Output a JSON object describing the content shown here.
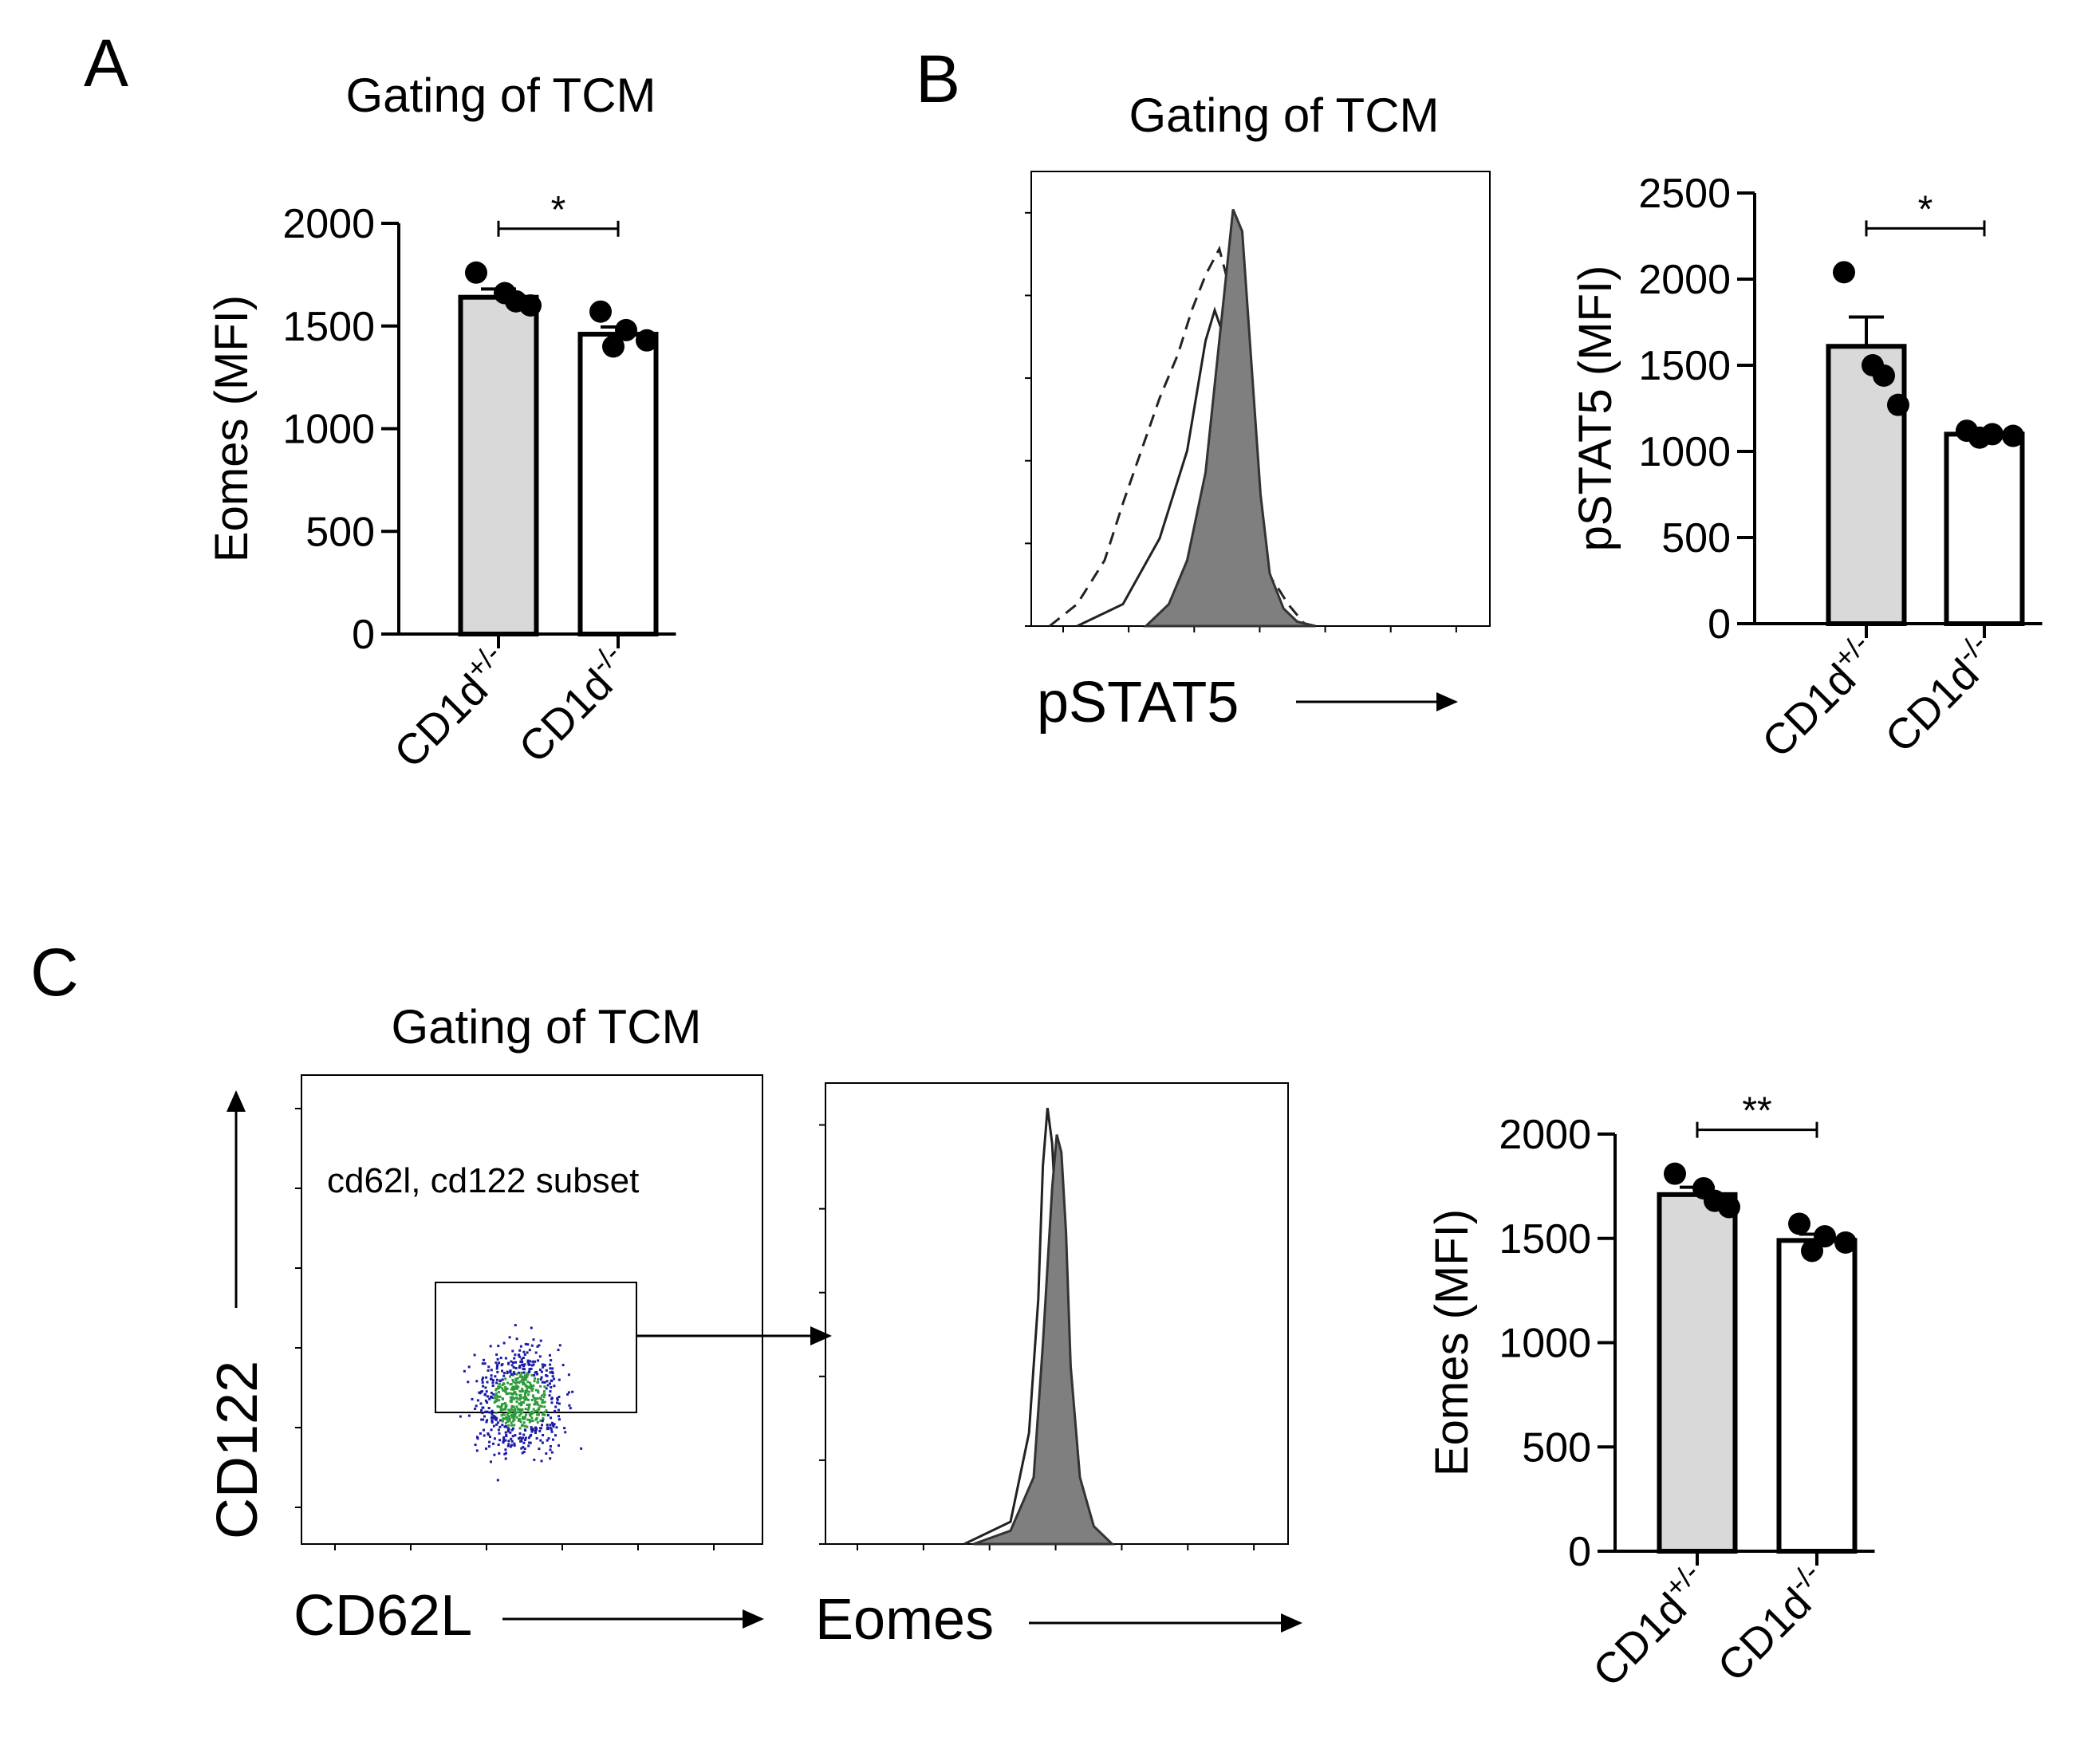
{
  "panels": {
    "A": {
      "letter": "A",
      "title": "Gating of TCM"
    },
    "B": {
      "letter": "B",
      "title": "Gating of TCM",
      "hist_xlabel": "pSTAT5"
    },
    "C": {
      "letter": "C",
      "title": "Gating of TCM",
      "dot_xlabel": "CD62L",
      "dot_ylabel": "CD122",
      "gate_label": "cd62l, cd122 subset",
      "hist_xlabel": "Eomes"
    }
  },
  "colors": {
    "het_bar": "#d9d9d9",
    "ko_bar": "#ffffff",
    "hist_fill": "#7f7f7f",
    "dots": "#1a1aa6",
    "dots_center": "#2e9b3a"
  },
  "chart_data": [
    {
      "type": "bar",
      "panel": "A",
      "categories": [
        "CD1d+/-",
        "CD1d-/-"
      ],
      "category_labels": [
        {
          "base": "CD1d",
          "sup": "+/-"
        },
        {
          "base": "CD1d",
          "sup": "-/-"
        }
      ],
      "values": [
        1640,
        1460
      ],
      "sem": [
        40,
        35
      ],
      "points": [
        [
          1760,
          1660,
          1620,
          1600
        ],
        [
          1570,
          1480,
          1430,
          1400
        ]
      ],
      "ylabel": "Eomes (MFI)",
      "ylim": [
        0,
        2000
      ],
      "yticks": [
        0,
        500,
        1000,
        1500,
        2000
      ],
      "significance": "*"
    },
    {
      "type": "line",
      "panel": "B",
      "subtype": "histogram-overlay",
      "xlabel": "pSTAT5",
      "series": [
        {
          "style": "dashed",
          "x": [
            0.04,
            0.1,
            0.16,
            0.2,
            0.24,
            0.28,
            0.32,
            0.35,
            0.38,
            0.41,
            0.43,
            0.45,
            0.47,
            0.49,
            0.51,
            0.53,
            0.56,
            0.6
          ],
          "y": [
            0.0,
            0.05,
            0.15,
            0.28,
            0.4,
            0.52,
            0.62,
            0.72,
            0.8,
            0.86,
            0.78,
            0.6,
            0.4,
            0.25,
            0.12,
            0.1,
            0.05,
            0.0
          ]
        },
        {
          "style": "solid",
          "x": [
            0.1,
            0.2,
            0.28,
            0.34,
            0.38,
            0.4,
            0.42,
            0.44,
            0.46,
            0.48,
            0.5,
            0.52,
            0.55,
            0.58
          ],
          "y": [
            0.0,
            0.05,
            0.2,
            0.4,
            0.65,
            0.72,
            0.66,
            0.8,
            0.55,
            0.25,
            0.12,
            0.05,
            0.02,
            0.0
          ]
        },
        {
          "style": "filled",
          "x": [
            0.25,
            0.3,
            0.34,
            0.38,
            0.4,
            0.42,
            0.44,
            0.46,
            0.48,
            0.5,
            0.52,
            0.55,
            0.58,
            0.62
          ],
          "y": [
            0.0,
            0.05,
            0.15,
            0.35,
            0.55,
            0.75,
            0.95,
            0.9,
            0.6,
            0.3,
            0.12,
            0.04,
            0.01,
            0.0
          ]
        }
      ]
    },
    {
      "type": "bar",
      "panel": "B",
      "categories": [
        "CD1d+/-",
        "CD1d-/-"
      ],
      "category_labels": [
        {
          "base": "CD1d",
          "sup": "+/-"
        },
        {
          "base": "CD1d",
          "sup": "-/-"
        }
      ],
      "values": [
        1610,
        1100
      ],
      "sem": [
        170,
        20
      ],
      "points": [
        [
          2040,
          1500,
          1440,
          1270
        ],
        [
          1120,
          1100,
          1090,
          1080
        ]
      ],
      "ylabel": "pSTAT5 (MFI)",
      "ylim": [
        0,
        2500
      ],
      "yticks": [
        0,
        500,
        1000,
        1500,
        2000,
        2500
      ],
      "significance": "*"
    },
    {
      "type": "scatter",
      "panel": "C",
      "subtype": "flow-dot-plot",
      "xlabel": "CD62L",
      "ylabel": "CD122",
      "gate": "cd62l, cd122 subset"
    },
    {
      "type": "line",
      "panel": "C",
      "subtype": "histogram-overlay",
      "xlabel": "Eomes",
      "series": [
        {
          "style": "solid",
          "x": [
            0.3,
            0.4,
            0.44,
            0.46,
            0.47,
            0.48,
            0.49,
            0.5,
            0.51,
            0.52,
            0.54,
            0.58
          ],
          "y": [
            0.0,
            0.05,
            0.25,
            0.55,
            0.85,
            0.98,
            0.9,
            0.7,
            0.45,
            0.2,
            0.05,
            0.0
          ]
        },
        {
          "style": "filled",
          "x": [
            0.32,
            0.4,
            0.45,
            0.47,
            0.49,
            0.5,
            0.51,
            0.52,
            0.53,
            0.55,
            0.58,
            0.62
          ],
          "y": [
            0.0,
            0.03,
            0.15,
            0.45,
            0.8,
            0.92,
            0.88,
            0.7,
            0.4,
            0.15,
            0.04,
            0.0
          ]
        }
      ]
    },
    {
      "type": "bar",
      "panel": "C",
      "categories": [
        "CD1d+/-",
        "CD1d-/-"
      ],
      "category_labels": [
        {
          "base": "CD1d",
          "sup": "+/-"
        },
        {
          "base": "CD1d",
          "sup": "-/-"
        }
      ],
      "values": [
        1710,
        1490
      ],
      "sem": [
        35,
        30
      ],
      "points": [
        [
          1810,
          1740,
          1680,
          1650
        ],
        [
          1570,
          1510,
          1480,
          1440
        ]
      ],
      "ylabel": "Eomes (MFI)",
      "ylim": [
        0,
        2000
      ],
      "yticks": [
        0,
        500,
        1000,
        1500,
        2000
      ],
      "significance": "**"
    }
  ]
}
